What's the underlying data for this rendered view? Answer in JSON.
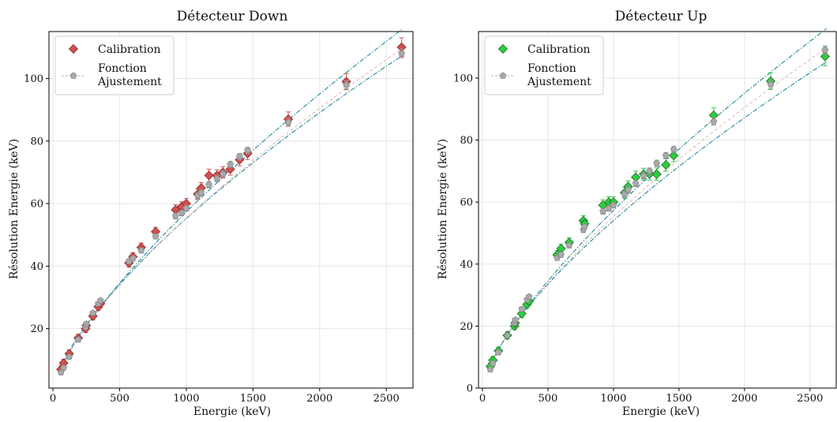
{
  "chart_data": [
    {
      "type": "scatter",
      "title": "Détecteur Down",
      "xlabel": "Energie (keV)",
      "ylabel": "Résolution Energie (keV)",
      "xlim": [
        -30,
        2700
      ],
      "ylim": [
        1,
        115
      ],
      "xticks": [
        0,
        500,
        1000,
        1500,
        2000,
        2500
      ],
      "yticks": [
        20,
        40,
        60,
        80,
        100
      ],
      "grid": true,
      "legend_position": "top-left",
      "legend": {
        "calibration": "Calibration",
        "fit_line1": "Fonction",
        "fit_line2": "Ajustement"
      },
      "calibration_color": "#d05050",
      "calibration_edge": "#8b2a2a",
      "fit_color": "#a9a9a9",
      "band_color": "#1f8a9a",
      "calibration": [
        {
          "x": 60,
          "y": 7,
          "err": 1.2
        },
        {
          "x": 80,
          "y": 9,
          "err": 1.2
        },
        {
          "x": 122,
          "y": 12,
          "err": 1.2
        },
        {
          "x": 190,
          "y": 17,
          "err": 1.2
        },
        {
          "x": 245,
          "y": 20,
          "err": 1.2
        },
        {
          "x": 250,
          "y": 21,
          "err": 1.2
        },
        {
          "x": 300,
          "y": 24,
          "err": 1.2
        },
        {
          "x": 340,
          "y": 27,
          "err": 1.2
        },
        {
          "x": 356,
          "y": 28,
          "err": 1.2
        },
        {
          "x": 570,
          "y": 41,
          "err": 1.3
        },
        {
          "x": 600,
          "y": 43,
          "err": 1.3
        },
        {
          "x": 662,
          "y": 46,
          "err": 1.4
        },
        {
          "x": 770,
          "y": 51,
          "err": 1.4
        },
        {
          "x": 920,
          "y": 58,
          "err": 1.6
        },
        {
          "x": 965,
          "y": 59,
          "err": 1.6
        },
        {
          "x": 1000,
          "y": 60,
          "err": 1.6
        },
        {
          "x": 1085,
          "y": 63,
          "err": 1.7
        },
        {
          "x": 1112,
          "y": 65,
          "err": 1.7
        },
        {
          "x": 1170,
          "y": 69,
          "err": 2
        },
        {
          "x": 1230,
          "y": 69,
          "err": 1.8
        },
        {
          "x": 1275,
          "y": 70,
          "err": 1.8
        },
        {
          "x": 1330,
          "y": 71,
          "err": 1.9
        },
        {
          "x": 1400,
          "y": 74,
          "err": 1.9
        },
        {
          "x": 1460,
          "y": 76,
          "err": 1.9
        },
        {
          "x": 1765,
          "y": 87,
          "err": 2.3
        },
        {
          "x": 2200,
          "y": 99,
          "err": 2.6
        },
        {
          "x": 2615,
          "y": 110,
          "err": 3
        }
      ],
      "fit": [
        {
          "x": 60,
          "y": 6,
          "err": 0.6
        },
        {
          "x": 80,
          "y": 7.5,
          "err": 0.6
        },
        {
          "x": 122,
          "y": 11,
          "err": 0.6
        },
        {
          "x": 190,
          "y": 16.5,
          "err": 0.6
        },
        {
          "x": 245,
          "y": 20.5,
          "err": 0.6
        },
        {
          "x": 250,
          "y": 21.5,
          "err": 0.6
        },
        {
          "x": 300,
          "y": 25,
          "err": 0.6
        },
        {
          "x": 340,
          "y": 28,
          "err": 0.6
        },
        {
          "x": 356,
          "y": 29,
          "err": 0.6
        },
        {
          "x": 570,
          "y": 41.5,
          "err": 0.8
        },
        {
          "x": 600,
          "y": 42.5,
          "err": 0.8
        },
        {
          "x": 662,
          "y": 45,
          "err": 0.8
        },
        {
          "x": 770,
          "y": 49.5,
          "err": 0.8
        },
        {
          "x": 920,
          "y": 56,
          "err": 0.9
        },
        {
          "x": 965,
          "y": 57,
          "err": 0.9
        },
        {
          "x": 1000,
          "y": 58.5,
          "err": 0.9
        },
        {
          "x": 1085,
          "y": 62.5,
          "err": 1
        },
        {
          "x": 1112,
          "y": 63.5,
          "err": 1
        },
        {
          "x": 1170,
          "y": 66,
          "err": 1
        },
        {
          "x": 1230,
          "y": 68,
          "err": 1
        },
        {
          "x": 1275,
          "y": 69.5,
          "err": 1
        },
        {
          "x": 1330,
          "y": 72.5,
          "err": 1
        },
        {
          "x": 1400,
          "y": 75,
          "err": 1
        },
        {
          "x": 1460,
          "y": 77,
          "err": 1
        },
        {
          "x": 1765,
          "y": 86,
          "err": 1.2
        },
        {
          "x": 2200,
          "y": 98,
          "err": 1.3
        },
        {
          "x": 2615,
          "y": 108,
          "err": 1.4
        }
      ],
      "fit_curve": {
        "a": 0.41,
        "b": 0.71
      },
      "band_low": {
        "a": 0.47,
        "b": 0.69
      },
      "band_high": {
        "a": 0.37,
        "b": 0.73
      }
    },
    {
      "type": "scatter",
      "title": "Détecteur Up",
      "xlabel": "Energie (keV)",
      "ylabel": "Résolution Energie (keV)",
      "xlim": [
        -30,
        2700
      ],
      "ylim": [
        0,
        115
      ],
      "xticks": [
        0,
        500,
        1000,
        1500,
        2000,
        2500
      ],
      "yticks": [
        0,
        20,
        40,
        60,
        80,
        100
      ],
      "grid": true,
      "legend_position": "top-left",
      "legend": {
        "calibration": "Calibration",
        "fit_line1": "Fonction",
        "fit_line2": "Ajustement"
      },
      "calibration_color": "#2ecc40",
      "calibration_edge": "#1a6b22",
      "fit_color": "#a9a9a9",
      "band_color": "#1f8a9a",
      "calibration": [
        {
          "x": 60,
          "y": 7,
          "err": 1.2
        },
        {
          "x": 80,
          "y": 9,
          "err": 1.2
        },
        {
          "x": 122,
          "y": 12,
          "err": 1.2
        },
        {
          "x": 190,
          "y": 17,
          "err": 1.2
        },
        {
          "x": 245,
          "y": 20,
          "err": 1.2
        },
        {
          "x": 250,
          "y": 21,
          "err": 1.2
        },
        {
          "x": 300,
          "y": 24,
          "err": 1.3
        },
        {
          "x": 340,
          "y": 27,
          "err": 1.3
        },
        {
          "x": 356,
          "y": 28,
          "err": 1.3
        },
        {
          "x": 570,
          "y": 43,
          "err": 1.4
        },
        {
          "x": 600,
          "y": 45,
          "err": 1.4
        },
        {
          "x": 662,
          "y": 47,
          "err": 1.5
        },
        {
          "x": 770,
          "y": 54,
          "err": 1.6
        },
        {
          "x": 780,
          "y": 53,
          "err": 1.6
        },
        {
          "x": 920,
          "y": 59,
          "err": 1.7
        },
        {
          "x": 965,
          "y": 60,
          "err": 1.7
        },
        {
          "x": 1000,
          "y": 60,
          "err": 1.7
        },
        {
          "x": 1085,
          "y": 63,
          "err": 1.8
        },
        {
          "x": 1112,
          "y": 65,
          "err": 1.8
        },
        {
          "x": 1170,
          "y": 68,
          "err": 2
        },
        {
          "x": 1230,
          "y": 69,
          "err": 1.9
        },
        {
          "x": 1275,
          "y": 69,
          "err": 1.9
        },
        {
          "x": 1330,
          "y": 69,
          "err": 2
        },
        {
          "x": 1400,
          "y": 72,
          "err": 2
        },
        {
          "x": 1460,
          "y": 75,
          "err": 2
        },
        {
          "x": 1765,
          "y": 88,
          "err": 2.4
        },
        {
          "x": 2200,
          "y": 99,
          "err": 2.7
        },
        {
          "x": 2615,
          "y": 107,
          "err": 3
        }
      ],
      "fit": [
        {
          "x": 60,
          "y": 6,
          "err": 0.6
        },
        {
          "x": 80,
          "y": 8,
          "err": 0.6
        },
        {
          "x": 122,
          "y": 11.5,
          "err": 0.6
        },
        {
          "x": 190,
          "y": 17,
          "err": 0.6
        },
        {
          "x": 245,
          "y": 21,
          "err": 0.6
        },
        {
          "x": 250,
          "y": 22,
          "err": 0.6
        },
        {
          "x": 300,
          "y": 25.5,
          "err": 0.6
        },
        {
          "x": 340,
          "y": 28.5,
          "err": 0.6
        },
        {
          "x": 356,
          "y": 29.5,
          "err": 0.6
        },
        {
          "x": 570,
          "y": 42,
          "err": 0.8
        },
        {
          "x": 600,
          "y": 43,
          "err": 0.8
        },
        {
          "x": 662,
          "y": 46,
          "err": 0.8
        },
        {
          "x": 770,
          "y": 51,
          "err": 0.8
        },
        {
          "x": 780,
          "y": 52,
          "err": 0.8
        },
        {
          "x": 920,
          "y": 57,
          "err": 0.9
        },
        {
          "x": 965,
          "y": 58,
          "err": 0.9
        },
        {
          "x": 1000,
          "y": 59,
          "err": 0.9
        },
        {
          "x": 1085,
          "y": 62.5,
          "err": 1
        },
        {
          "x": 1112,
          "y": 64,
          "err": 1
        },
        {
          "x": 1170,
          "y": 66,
          "err": 1
        },
        {
          "x": 1230,
          "y": 68.5,
          "err": 1
        },
        {
          "x": 1275,
          "y": 70,
          "err": 1
        },
        {
          "x": 1330,
          "y": 72.5,
          "err": 1
        },
        {
          "x": 1400,
          "y": 75,
          "err": 1
        },
        {
          "x": 1460,
          "y": 77,
          "err": 1
        },
        {
          "x": 1765,
          "y": 86,
          "err": 1.2
        },
        {
          "x": 2200,
          "y": 98,
          "err": 1.3
        },
        {
          "x": 2615,
          "y": 109,
          "err": 1.4
        }
      ],
      "fit_curve": {
        "a": 0.41,
        "b": 0.71
      },
      "band_low": {
        "a": 0.46,
        "b": 0.69
      },
      "band_high": {
        "a": 0.37,
        "b": 0.73
      }
    }
  ]
}
